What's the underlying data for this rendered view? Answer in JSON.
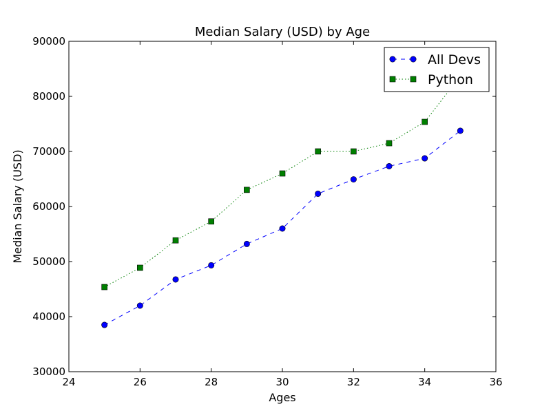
{
  "chart_data": {
    "type": "line",
    "title": "Median Salary (USD) by Age",
    "xlabel": "Ages",
    "ylabel": "Median Salary (USD)",
    "xlim": [
      24,
      36
    ],
    "ylim": [
      30000,
      90000
    ],
    "xticks": [
      24,
      26,
      28,
      30,
      32,
      34,
      36
    ],
    "yticks": [
      30000,
      40000,
      50000,
      60000,
      70000,
      80000,
      90000
    ],
    "grid": false,
    "legend_position": "top-right",
    "x": [
      25,
      26,
      27,
      28,
      29,
      30,
      31,
      32,
      33,
      34,
      35
    ],
    "series": [
      {
        "name": "All Devs",
        "color": "#0000ff",
        "marker": "circle",
        "linestyle": "dashed",
        "values": [
          38496,
          42000,
          46752,
          49320,
          53200,
          56000,
          62316,
          64928,
          67317,
          68748,
          73752
        ]
      },
      {
        "name": "Python",
        "color": "#007f00",
        "marker": "square",
        "linestyle": "dotted",
        "values": [
          45372,
          48876,
          53850,
          57287,
          63016,
          65998,
          70003,
          70000,
          71496,
          75370,
          83640
        ]
      }
    ]
  }
}
